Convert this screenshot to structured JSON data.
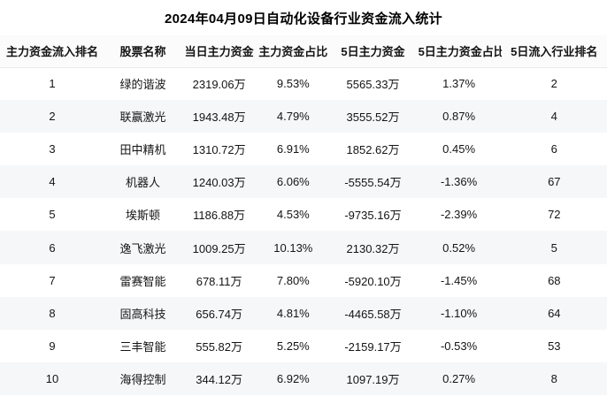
{
  "chart_data": {
    "type": "table",
    "title": "2024年04月09日自动化设备行业资金流入统计",
    "columns": [
      "主力资金流入排名",
      "股票名称",
      "当日主力资金",
      "主力资金占比",
      "5日主力资金",
      "5日主力资金占比",
      "5日流入行业排名"
    ],
    "col_keys": [
      "rank",
      "stock_name",
      "main_fund_today",
      "main_fund_ratio_today",
      "main_fund_5d",
      "main_fund_ratio_5d",
      "industry_inflow_rank_5d"
    ],
    "rows": [
      {
        "rank": "1",
        "stock_name": "绿的谐波",
        "main_fund_today": "2319.06万",
        "main_fund_ratio_today": "9.53%",
        "main_fund_5d": "5565.33万",
        "main_fund_ratio_5d": "1.37%",
        "industry_inflow_rank_5d": "2"
      },
      {
        "rank": "2",
        "stock_name": "联赢激光",
        "main_fund_today": "1943.48万",
        "main_fund_ratio_today": "4.79%",
        "main_fund_5d": "3555.52万",
        "main_fund_ratio_5d": "0.87%",
        "industry_inflow_rank_5d": "4"
      },
      {
        "rank": "3",
        "stock_name": "田中精机",
        "main_fund_today": "1310.72万",
        "main_fund_ratio_today": "6.91%",
        "main_fund_5d": "1852.62万",
        "main_fund_ratio_5d": "0.45%",
        "industry_inflow_rank_5d": "6"
      },
      {
        "rank": "4",
        "stock_name": "机器人",
        "main_fund_today": "1240.03万",
        "main_fund_ratio_today": "6.06%",
        "main_fund_5d": "-5555.54万",
        "main_fund_ratio_5d": "-1.36%",
        "industry_inflow_rank_5d": "67"
      },
      {
        "rank": "5",
        "stock_name": "埃斯顿",
        "main_fund_today": "1186.88万",
        "main_fund_ratio_today": "4.53%",
        "main_fund_5d": "-9735.16万",
        "main_fund_ratio_5d": "-2.39%",
        "industry_inflow_rank_5d": "72"
      },
      {
        "rank": "6",
        "stock_name": "逸飞激光",
        "main_fund_today": "1009.25万",
        "main_fund_ratio_today": "10.13%",
        "main_fund_5d": "2130.32万",
        "main_fund_ratio_5d": "0.52%",
        "industry_inflow_rank_5d": "5"
      },
      {
        "rank": "7",
        "stock_name": "雷赛智能",
        "main_fund_today": "678.11万",
        "main_fund_ratio_today": "7.80%",
        "main_fund_5d": "-5920.10万",
        "main_fund_ratio_5d": "-1.45%",
        "industry_inflow_rank_5d": "68"
      },
      {
        "rank": "8",
        "stock_name": "固高科技",
        "main_fund_today": "656.74万",
        "main_fund_ratio_today": "4.81%",
        "main_fund_5d": "-4465.58万",
        "main_fund_ratio_5d": "-1.10%",
        "industry_inflow_rank_5d": "64"
      },
      {
        "rank": "9",
        "stock_name": "三丰智能",
        "main_fund_today": "555.82万",
        "main_fund_ratio_today": "5.25%",
        "main_fund_5d": "-2159.17万",
        "main_fund_ratio_5d": "-0.53%",
        "industry_inflow_rank_5d": "53"
      },
      {
        "rank": "10",
        "stock_name": "海得控制",
        "main_fund_today": "344.12万",
        "main_fund_ratio_today": "6.92%",
        "main_fund_5d": "1097.19万",
        "main_fund_ratio_5d": "0.27%",
        "industry_inflow_rank_5d": "8"
      }
    ]
  },
  "colors": {
    "background": "#ffffff",
    "row_alt_bg": "#f6f7f9",
    "header_bg": "#fbfbfb",
    "header_border": "#e9e9e9",
    "text": "#141414"
  }
}
